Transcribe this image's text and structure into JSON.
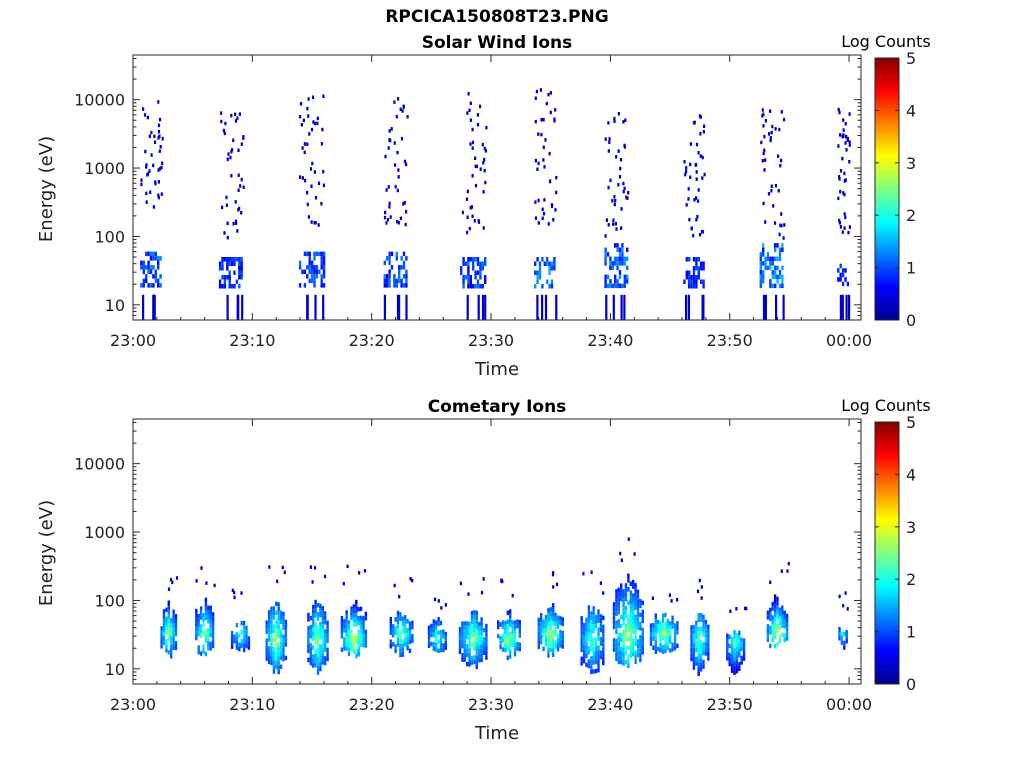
{
  "figure": {
    "title": "RPCICA150808T23.PNG"
  },
  "chart_data": [
    {
      "type": "heatmap",
      "title": "Solar Wind Ions",
      "xlabel": "Time",
      "ylabel": "Energy (eV)",
      "x_ticks": [
        "23:00",
        "23:10",
        "23:20",
        "23:30",
        "23:40",
        "23:50",
        "00:00"
      ],
      "x_range_minutes": [
        0,
        61
      ],
      "y_scale": "log",
      "y_ticks": [
        "10",
        "100",
        "1000",
        "10000"
      ],
      "y_range": [
        6,
        45000
      ],
      "colorbar": {
        "title": "Log Counts",
        "range": [
          0,
          5
        ],
        "ticks": [
          "0",
          "1",
          "2",
          "3",
          "4",
          "5"
        ]
      },
      "clusters": [
        {
          "t": 1.5,
          "w": 1.8,
          "sparse_lo": 200,
          "sparse_hi": 10000,
          "core_lo": 20,
          "core_hi": 60,
          "peak": 1.2
        },
        {
          "t": 8.2,
          "w": 2.0,
          "sparse_lo": 100,
          "sparse_hi": 7000,
          "core_lo": 20,
          "core_hi": 50,
          "peak": 1.0
        },
        {
          "t": 15.0,
          "w": 2.2,
          "sparse_lo": 150,
          "sparse_hi": 12000,
          "core_lo": 20,
          "core_hi": 60,
          "peak": 1.1
        },
        {
          "t": 22.0,
          "w": 2.0,
          "sparse_lo": 150,
          "sparse_hi": 12000,
          "core_lo": 20,
          "core_hi": 60,
          "peak": 1.2
        },
        {
          "t": 28.5,
          "w": 2.2,
          "sparse_lo": 120,
          "sparse_hi": 15000,
          "core_lo": 20,
          "core_hi": 50,
          "peak": 1.1
        },
        {
          "t": 34.5,
          "w": 1.8,
          "sparse_lo": 150,
          "sparse_hi": 15000,
          "core_lo": 20,
          "core_hi": 50,
          "peak": 1.4
        },
        {
          "t": 40.5,
          "w": 2.0,
          "sparse_lo": 100,
          "sparse_hi": 8000,
          "core_lo": 20,
          "core_hi": 80,
          "peak": 1.3
        },
        {
          "t": 47.0,
          "w": 1.8,
          "sparse_lo": 100,
          "sparse_hi": 8000,
          "core_lo": 20,
          "core_hi": 50,
          "peak": 0.9
        },
        {
          "t": 53.5,
          "w": 2.0,
          "sparse_lo": 100,
          "sparse_hi": 12000,
          "core_lo": 20,
          "core_hi": 80,
          "peak": 1.5
        },
        {
          "t": 59.5,
          "w": 1.0,
          "sparse_lo": 100,
          "sparse_hi": 8000,
          "core_lo": 20,
          "core_hi": 40,
          "peak": 0.8
        }
      ]
    },
    {
      "type": "heatmap",
      "title": "Cometary Ions",
      "xlabel": "Time",
      "ylabel": "Energy (eV)",
      "x_ticks": [
        "23:00",
        "23:10",
        "23:20",
        "23:30",
        "23:40",
        "23:50",
        "00:00"
      ],
      "x_range_minutes": [
        0,
        61
      ],
      "y_scale": "log",
      "y_ticks": [
        "10",
        "100",
        "1000",
        "10000"
      ],
      "y_range": [
        6,
        45000
      ],
      "colorbar": {
        "title": "Log Counts",
        "range": [
          0,
          5
        ],
        "ticks": [
          "0",
          "1",
          "2",
          "3",
          "4",
          "5"
        ]
      },
      "clusters": [
        {
          "t": 3.0,
          "w": 1.4,
          "lo": 15,
          "hi": 100,
          "center": 35,
          "peak": 2.2
        },
        {
          "t": 6.0,
          "w": 1.6,
          "lo": 15,
          "hi": 120,
          "center": 35,
          "peak": 2.3
        },
        {
          "t": 9.0,
          "w": 1.6,
          "lo": 15,
          "hi": 60,
          "center": 35,
          "peak": 1.8
        },
        {
          "t": 12.0,
          "w": 1.8,
          "lo": 8,
          "hi": 120,
          "center": 30,
          "peak": 2.4
        },
        {
          "t": 15.5,
          "w": 1.8,
          "lo": 8,
          "hi": 120,
          "center": 30,
          "peak": 2.3
        },
        {
          "t": 18.5,
          "w": 2.2,
          "lo": 15,
          "hi": 120,
          "center": 30,
          "peak": 2.6
        },
        {
          "t": 22.5,
          "w": 2.0,
          "lo": 15,
          "hi": 80,
          "center": 35,
          "peak": 2.2
        },
        {
          "t": 25.5,
          "w": 1.6,
          "lo": 15,
          "hi": 60,
          "center": 30,
          "peak": 2.0
        },
        {
          "t": 28.5,
          "w": 2.4,
          "lo": 10,
          "hi": 80,
          "center": 30,
          "peak": 2.3
        },
        {
          "t": 31.5,
          "w": 2.0,
          "lo": 15,
          "hi": 80,
          "center": 30,
          "peak": 2.5
        },
        {
          "t": 35.0,
          "w": 2.2,
          "lo": 15,
          "hi": 100,
          "center": 35,
          "peak": 2.6
        },
        {
          "t": 38.5,
          "w": 2.0,
          "lo": 8,
          "hi": 100,
          "center": 30,
          "peak": 2.1
        },
        {
          "t": 41.5,
          "w": 2.6,
          "lo": 10,
          "hi": 300,
          "center": 35,
          "peak": 2.5
        },
        {
          "t": 44.5,
          "w": 2.4,
          "lo": 15,
          "hi": 80,
          "center": 35,
          "peak": 2.5
        },
        {
          "t": 47.5,
          "w": 1.6,
          "lo": 8,
          "hi": 80,
          "center": 30,
          "peak": 2.2
        },
        {
          "t": 50.5,
          "w": 1.6,
          "lo": 8,
          "hi": 40,
          "center": 25,
          "peak": 2.0
        },
        {
          "t": 54.0,
          "w": 1.8,
          "lo": 20,
          "hi": 150,
          "center": 35,
          "peak": 2.7
        },
        {
          "t": 59.5,
          "w": 0.8,
          "lo": 20,
          "hi": 50,
          "center": 35,
          "peak": 1.8
        }
      ]
    }
  ]
}
